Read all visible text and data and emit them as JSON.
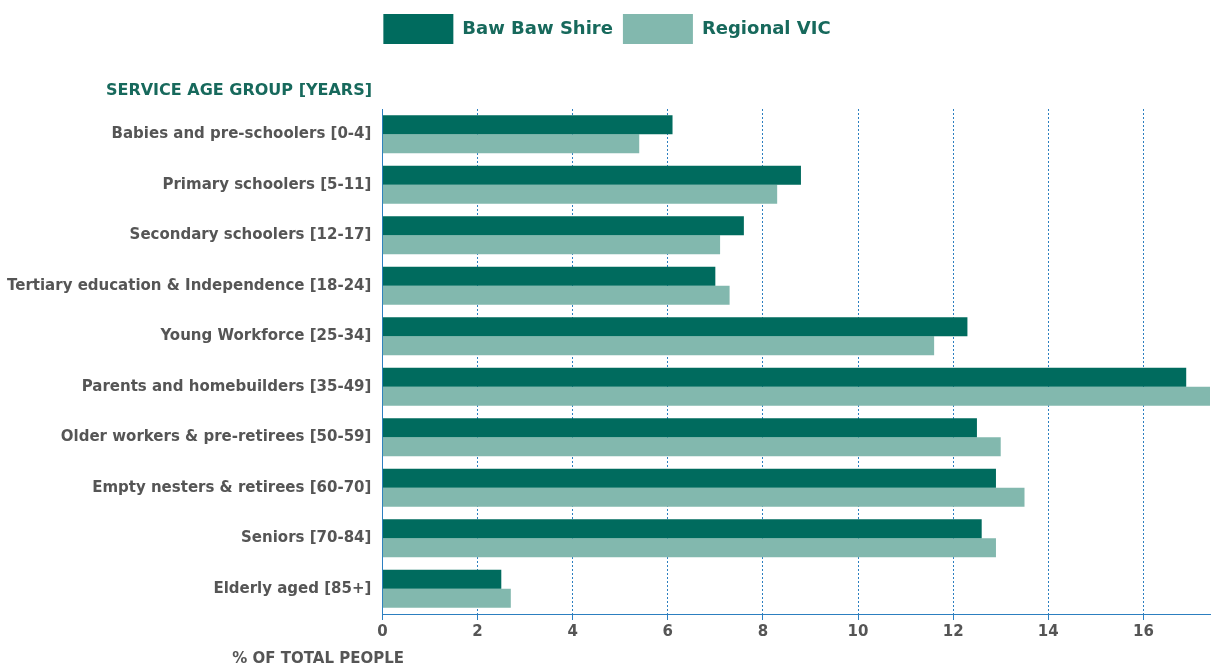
{
  "chart_data": {
    "type": "bar",
    "orientation": "horizontal",
    "xlabel": "% OF TOTAL PEOPLE",
    "ylabel": "SERVICE AGE GROUP [YEARS]",
    "categories": [
      "Babies and pre-schoolers [0-4]",
      "Primary schoolers [5-11]",
      "Secondary schoolers [12-17]",
      "Tertiary education & Independence [18-24]",
      "Young Workforce [25-34]",
      "Parents and homebuilders [35-49]",
      "Older workers & pre-retirees [50-59]",
      "Empty nesters & retirees [60-70]",
      "Seniors [70-84]",
      "Elderly aged [85+]"
    ],
    "series": [
      {
        "name": "Baw Baw Shire",
        "color": "#006b5e",
        "values": [
          6.1,
          8.8,
          7.6,
          7.0,
          12.3,
          16.9,
          12.5,
          12.9,
          12.6,
          2.5
        ]
      },
      {
        "name": "Regional VIC",
        "color": "#82b8ae",
        "values": [
          5.4,
          8.3,
          7.1,
          7.3,
          11.6,
          17.4,
          13.0,
          13.5,
          12.9,
          2.7
        ]
      }
    ],
    "xlim": [
      0,
      17.4
    ],
    "xticks": [
      0,
      2,
      4,
      6,
      8,
      10,
      12,
      14,
      16
    ],
    "grid": "x",
    "legend": "top"
  }
}
